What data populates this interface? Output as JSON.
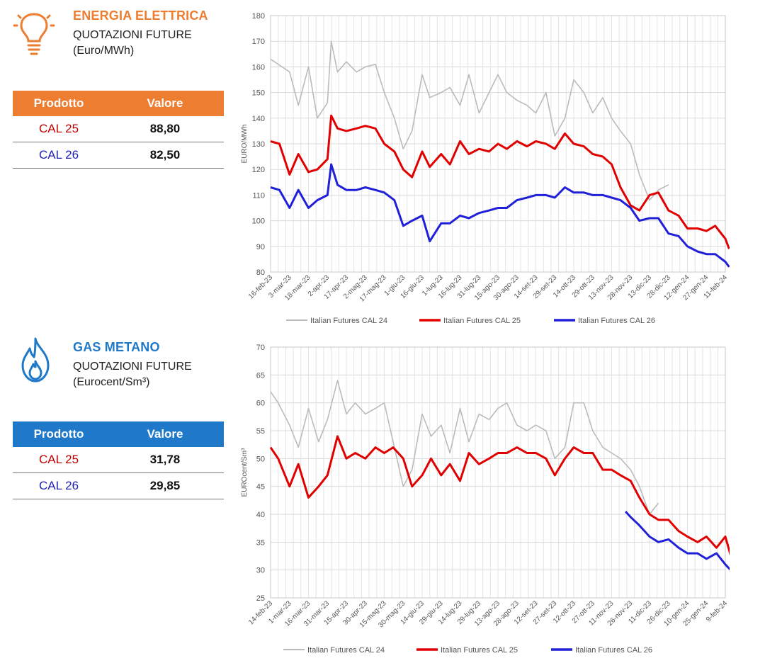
{
  "colors": {
    "energy_accent": "#ED7D31",
    "gas_accent": "#1F78C8",
    "cal24": "#BBBBBB",
    "cal25": "#E00000",
    "cal26": "#2020D8",
    "cal25_text": "#C00000",
    "cal26_text": "#1F1FB0"
  },
  "energy": {
    "title": "ENERGIA ELETTRICA",
    "subtitle": "QUOTAZIONI FUTURE",
    "unit": "(Euro/MWh)",
    "icon": "lightbulb-icon",
    "table": {
      "headers": [
        "Prodotto",
        "Valore"
      ],
      "rows": [
        {
          "product": "CAL 25",
          "value": "88,80"
        },
        {
          "product": "CAL 26",
          "value": "82,50"
        }
      ]
    }
  },
  "gas": {
    "title": "GAS METANO",
    "subtitle": "QUOTAZIONI FUTURE",
    "unit": "(Eurocent/Sm³)",
    "icon": "flame-icon",
    "table": {
      "headers": [
        "Prodotto",
        "Valore"
      ],
      "rows": [
        {
          "product": "CAL 25",
          "value": "31,78"
        },
        {
          "product": "CAL 26",
          "value": "29,85"
        }
      ]
    }
  },
  "chart_data": [
    {
      "type": "line",
      "ylabel": "EURO/MWh",
      "ylim": [
        80,
        180
      ],
      "yticks": [
        80,
        90,
        100,
        110,
        120,
        130,
        140,
        150,
        160,
        170,
        180
      ],
      "grid": true,
      "legend_position": "bottom",
      "x_ticks": [
        "16-feb-23",
        "3-mar-23",
        "18-mar-23",
        "2-apr-23",
        "17-apr-23",
        "2-mag-23",
        "17-mag-23",
        "1-giu-23",
        "16-giu-23",
        "1-lug-23",
        "16-lug-23",
        "31-lug-23",
        "15-ago-23",
        "30-ago-23",
        "14-set-23",
        "29-set-23",
        "14-ott-23",
        "29-ott-23",
        "13-nov-23",
        "28-nov-23",
        "13-dic-23",
        "28-dic-23",
        "12-gen-24",
        "27-gen-24",
        "11-feb-24"
      ],
      "series": [
        {
          "name": "Italian Futures CAL 24",
          "color": "#BBBBBB",
          "x": [
            "16-feb-23",
            "3-mar-23",
            "10-mar-23",
            "18-mar-23",
            "25-mar-23",
            "2-apr-23",
            "5-apr-23",
            "10-apr-23",
            "17-apr-23",
            "25-apr-23",
            "2-mag-23",
            "10-mag-23",
            "17-mag-23",
            "25-mag-23",
            "1-giu-23",
            "8-giu-23",
            "16-giu-23",
            "22-giu-23",
            "1-lug-23",
            "8-lug-23",
            "16-lug-23",
            "23-lug-23",
            "31-lug-23",
            "8-ago-23",
            "15-ago-23",
            "22-ago-23",
            "30-ago-23",
            "7-set-23",
            "14-set-23",
            "22-set-23",
            "29-set-23",
            "7-ott-23",
            "14-ott-23",
            "22-ott-23",
            "29-ott-23",
            "6-nov-23",
            "13-nov-23",
            "20-nov-23",
            "28-nov-23",
            "5-dic-23",
            "13-dic-23",
            "20-dic-23",
            "28-dic-23"
          ],
          "y": [
            163,
            158,
            145,
            160,
            140,
            146,
            170,
            158,
            162,
            158,
            160,
            161,
            150,
            140,
            128,
            135,
            157,
            148,
            150,
            152,
            145,
            157,
            142,
            150,
            157,
            150,
            147,
            145,
            142,
            150,
            133,
            140,
            155,
            150,
            142,
            148,
            140,
            135,
            130,
            118,
            108,
            112,
            114
          ]
        },
        {
          "name": "Italian Futures CAL 25",
          "color": "#E00000",
          "x": [
            "16-feb-23",
            "23-feb-23",
            "3-mar-23",
            "10-mar-23",
            "18-mar-23",
            "25-mar-23",
            "2-apr-23",
            "5-apr-23",
            "10-apr-23",
            "17-apr-23",
            "25-apr-23",
            "2-mag-23",
            "10-mag-23",
            "17-mag-23",
            "25-mag-23",
            "1-giu-23",
            "8-giu-23",
            "16-giu-23",
            "22-giu-23",
            "1-lug-23",
            "8-lug-23",
            "16-lug-23",
            "23-lug-23",
            "31-lug-23",
            "8-ago-23",
            "15-ago-23",
            "22-ago-23",
            "30-ago-23",
            "7-set-23",
            "14-set-23",
            "22-set-23",
            "29-set-23",
            "7-ott-23",
            "14-ott-23",
            "22-ott-23",
            "29-ott-23",
            "6-nov-23",
            "13-nov-23",
            "20-nov-23",
            "28-nov-23",
            "5-dic-23",
            "13-dic-23",
            "20-dic-23",
            "28-dic-23",
            "5-gen-24",
            "12-gen-24",
            "20-gen-24",
            "27-gen-24",
            "3-feb-24",
            "11-feb-24",
            "14-feb-24"
          ],
          "y": [
            131,
            130,
            118,
            126,
            119,
            120,
            124,
            141,
            136,
            135,
            136,
            137,
            136,
            130,
            127,
            120,
            117,
            127,
            121,
            126,
            122,
            131,
            126,
            128,
            127,
            130,
            128,
            131,
            129,
            131,
            130,
            128,
            134,
            130,
            129,
            126,
            125,
            122,
            113,
            106,
            104,
            110,
            111,
            104,
            102,
            97,
            97,
            96,
            98,
            93,
            89
          ]
        },
        {
          "name": "Italian Futures CAL 26",
          "color": "#2020D8",
          "x": [
            "16-feb-23",
            "23-feb-23",
            "3-mar-23",
            "10-mar-23",
            "18-mar-23",
            "25-mar-23",
            "2-apr-23",
            "5-apr-23",
            "10-apr-23",
            "17-apr-23",
            "25-apr-23",
            "2-mag-23",
            "10-mag-23",
            "17-mag-23",
            "25-mag-23",
            "1-giu-23",
            "8-giu-23",
            "16-giu-23",
            "22-giu-23",
            "1-lug-23",
            "8-lug-23",
            "16-lug-23",
            "23-lug-23",
            "31-lug-23",
            "8-ago-23",
            "15-ago-23",
            "22-ago-23",
            "30-ago-23",
            "7-set-23",
            "14-set-23",
            "22-set-23",
            "29-set-23",
            "7-ott-23",
            "14-ott-23",
            "22-ott-23",
            "29-ott-23",
            "6-nov-23",
            "13-nov-23",
            "20-nov-23",
            "28-nov-23",
            "5-dic-23",
            "13-dic-23",
            "20-dic-23",
            "28-dic-23",
            "5-gen-24",
            "12-gen-24",
            "20-gen-24",
            "27-gen-24",
            "3-feb-24",
            "11-feb-24",
            "14-feb-24"
          ],
          "y": [
            113,
            112,
            105,
            112,
            105,
            108,
            110,
            122,
            114,
            112,
            112,
            113,
            112,
            111,
            108,
            98,
            100,
            102,
            92,
            99,
            99,
            102,
            101,
            103,
            104,
            105,
            105,
            108,
            109,
            110,
            110,
            109,
            113,
            111,
            111,
            110,
            110,
            109,
            108,
            105,
            100,
            101,
            101,
            95,
            94,
            90,
            88,
            87,
            87,
            84,
            82
          ]
        }
      ]
    },
    {
      "type": "line",
      "ylabel": "EUROcent/Sm³",
      "ylim": [
        25,
        70
      ],
      "yticks": [
        25,
        30,
        35,
        40,
        45,
        50,
        55,
        60,
        65,
        70
      ],
      "grid": true,
      "legend_position": "bottom",
      "x_ticks": [
        "14-feb-23",
        "1-mar-23",
        "16-mar-23",
        "31-mar-23",
        "15-apr-23",
        "30-apr-23",
        "15-mag-23",
        "30-mag-23",
        "14-giu-23",
        "29-giu-23",
        "14-lug-23",
        "29-lug-23",
        "13-ago-23",
        "28-ago-23",
        "12-set-23",
        "27-set-23",
        "12-ott-23",
        "27-ott-23",
        "11-nov-23",
        "26-nov-23",
        "11-dic-23",
        "26-dic-23",
        "10-gen-24",
        "25-gen-24",
        "9-feb-24"
      ],
      "series": [
        {
          "name": "Italian Futures CAL 24",
          "color": "#BBBBBB",
          "x": [
            "14-feb-23",
            "20-feb-23",
            "1-mar-23",
            "8-mar-23",
            "16-mar-23",
            "24-mar-23",
            "31-mar-23",
            "8-apr-23",
            "15-apr-23",
            "22-apr-23",
            "30-apr-23",
            "8-mag-23",
            "15-mag-23",
            "22-mag-23",
            "30-mag-23",
            "6-giu-23",
            "14-giu-23",
            "21-giu-23",
            "29-giu-23",
            "6-lug-23",
            "14-lug-23",
            "21-lug-23",
            "29-lug-23",
            "6-ago-23",
            "13-ago-23",
            "20-ago-23",
            "28-ago-23",
            "5-set-23",
            "12-set-23",
            "20-set-23",
            "27-set-23",
            "5-ott-23",
            "12-ott-23",
            "20-ott-23",
            "27-ott-23",
            "4-nov-23",
            "11-nov-23",
            "18-nov-23",
            "26-nov-23",
            "3-dic-23",
            "11-dic-23",
            "18-dic-23"
          ],
          "y": [
            62,
            60,
            56,
            52,
            59,
            53,
            57,
            64,
            58,
            60,
            58,
            59,
            60,
            53,
            45,
            48,
            58,
            54,
            56,
            51,
            59,
            53,
            58,
            57,
            59,
            60,
            56,
            55,
            56,
            55,
            50,
            52,
            60,
            60,
            55,
            52,
            51,
            50,
            48,
            45,
            40,
            42
          ]
        },
        {
          "name": "Italian Futures CAL 25",
          "color": "#E00000",
          "x": [
            "14-feb-23",
            "20-feb-23",
            "1-mar-23",
            "8-mar-23",
            "16-mar-23",
            "24-mar-23",
            "31-mar-23",
            "8-apr-23",
            "15-apr-23",
            "22-apr-23",
            "30-apr-23",
            "8-mag-23",
            "15-mag-23",
            "22-mag-23",
            "30-mag-23",
            "6-giu-23",
            "14-giu-23",
            "21-giu-23",
            "29-giu-23",
            "6-lug-23",
            "14-lug-23",
            "21-lug-23",
            "29-lug-23",
            "6-ago-23",
            "13-ago-23",
            "20-ago-23",
            "28-ago-23",
            "5-set-23",
            "12-set-23",
            "20-set-23",
            "27-set-23",
            "5-ott-23",
            "12-ott-23",
            "20-ott-23",
            "27-ott-23",
            "4-nov-23",
            "11-nov-23",
            "18-nov-23",
            "26-nov-23",
            "3-dic-23",
            "11-dic-23",
            "18-dic-23",
            "26-dic-23",
            "3-gen-24",
            "10-gen-24",
            "18-gen-24",
            "25-gen-24",
            "2-feb-24",
            "9-feb-24",
            "14-feb-24"
          ],
          "y": [
            52,
            50,
            45,
            49,
            43,
            45,
            47,
            54,
            50,
            51,
            50,
            52,
            51,
            52,
            50,
            45,
            47,
            50,
            47,
            49,
            46,
            51,
            49,
            50,
            51,
            51,
            52,
            51,
            51,
            50,
            47,
            50,
            52,
            51,
            51,
            48,
            48,
            47,
            46,
            43,
            40,
            39,
            39,
            37,
            36,
            35,
            36,
            34,
            36,
            32
          ]
        },
        {
          "name": "Italian Futures CAL 26",
          "color": "#2020D8",
          "x": [
            "22-nov-23",
            "26-nov-23",
            "3-dic-23",
            "11-dic-23",
            "18-dic-23",
            "26-dic-23",
            "3-gen-24",
            "10-gen-24",
            "18-gen-24",
            "25-gen-24",
            "2-feb-24",
            "9-feb-24",
            "14-feb-24"
          ],
          "y": [
            40.5,
            39.5,
            38,
            36,
            35,
            35.5,
            34,
            33,
            33,
            32,
            33,
            31,
            29.8
          ]
        }
      ]
    }
  ]
}
